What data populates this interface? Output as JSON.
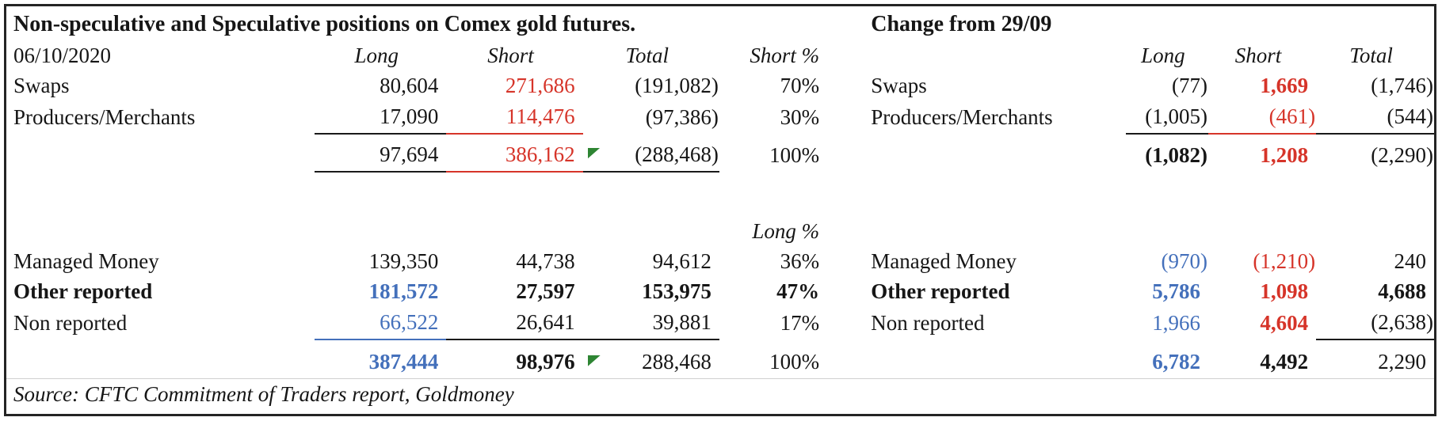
{
  "title_left": "Non-speculative and Speculative positions on Comex gold futures.",
  "title_right": "Change from 29/09",
  "source": "Source: CFTC Commitment of Traders report, Goldmoney",
  "colors": {
    "red": "#d63429",
    "blue": "#4470bb",
    "green": "#2e8533",
    "ink": "#161616",
    "border": "#242424"
  },
  "green_flag_meaning": "green-flag-icon",
  "grid": {
    "columns": [
      "label_left",
      "long_left",
      "short_left",
      "total_left",
      "short_pct",
      "gap",
      "label_right",
      "long_right",
      "short_right",
      "total_right"
    ],
    "flag_legend": "b=bold i=italic r=red l=blue u=underline v=red-underline w=blue-underline p=parenthesized g=green-flag h=centered-italic-header q=right-italic-header",
    "rows": [
      [
        {
          "t": "06/10/2020"
        },
        {
          "t": "Long",
          "f": "h"
        },
        {
          "t": "Short",
          "f": "h"
        },
        {
          "t": "Total",
          "f": "h"
        },
        {
          "t": "Short %",
          "f": "q"
        },
        {},
        {},
        {
          "t": "Long",
          "f": "h"
        },
        {
          "t": "Short",
          "f": "h"
        },
        {
          "t": "Total",
          "f": "h"
        }
      ],
      [
        {
          "t": "Swaps"
        },
        {
          "t": "80,604"
        },
        {
          "t": "271,686",
          "f": "r"
        },
        {
          "t": "(191,082)",
          "f": "p"
        },
        {
          "t": "70%"
        },
        {},
        {
          "t": "Swaps"
        },
        {
          "t": "(77)",
          "f": "p"
        },
        {
          "t": "1,669",
          "f": "rb"
        },
        {
          "t": "(1,746)",
          "f": "p"
        }
      ],
      [
        {
          "t": "Producers/Merchants"
        },
        {
          "t": "17,090",
          "f": "u"
        },
        {
          "t": "114,476",
          "f": "rv"
        },
        {
          "t": "(97,386)",
          "f": "p"
        },
        {
          "t": "30%"
        },
        {},
        {
          "t": "Producers/Merchants"
        },
        {
          "t": "(1,005)",
          "f": "pu"
        },
        {
          "t": "(461)",
          "f": "prv"
        },
        {
          "t": "(544)",
          "f": "pu"
        }
      ],
      [
        {},
        {
          "t": "97,694",
          "f": "u"
        },
        {
          "t": "386,162",
          "f": "rvg"
        },
        {
          "t": "(288,468)",
          "f": "pu"
        },
        {
          "t": "100%"
        },
        {},
        {},
        {
          "t": "(1,082)",
          "f": "pb"
        },
        {
          "t": "1,208",
          "f": "rb"
        },
        {
          "t": "(2,290)",
          "f": "p"
        }
      ],
      [
        {},
        {},
        {},
        {},
        {},
        {},
        {},
        {},
        {},
        {}
      ],
      [
        {},
        {},
        {},
        {},
        {
          "t": "Long %",
          "f": "q"
        },
        {},
        {},
        {},
        {},
        {}
      ],
      [
        {
          "t": "Managed Money"
        },
        {
          "t": "139,350"
        },
        {
          "t": "44,738"
        },
        {
          "t": "94,612"
        },
        {
          "t": "36%"
        },
        {},
        {
          "t": "Managed Money"
        },
        {
          "t": "(970)",
          "f": "pl"
        },
        {
          "t": "(1,210)",
          "f": "pr"
        },
        {
          "t": "240"
        }
      ],
      [
        {
          "t": "Other reported",
          "f": "b"
        },
        {
          "t": "181,572",
          "f": "lb"
        },
        {
          "t": "27,597",
          "f": "b"
        },
        {
          "t": "153,975",
          "f": "b"
        },
        {
          "t": "47%",
          "f": "b"
        },
        {},
        {
          "t": "Other reported",
          "f": "b"
        },
        {
          "t": "5,786",
          "f": "lb"
        },
        {
          "t": "1,098",
          "f": "rb"
        },
        {
          "t": "4,688",
          "f": "b"
        }
      ],
      [
        {
          "t": "Non reported"
        },
        {
          "t": "66,522",
          "f": "lw"
        },
        {
          "t": "26,641",
          "f": "u"
        },
        {
          "t": "39,881",
          "f": "u"
        },
        {
          "t": "17%"
        },
        {},
        {
          "t": "Non reported"
        },
        {
          "t": "1,966",
          "f": "l"
        },
        {
          "t": "4,604",
          "f": "rb"
        },
        {
          "t": "(2,638)",
          "f": "pu"
        }
      ],
      [
        {},
        {
          "t": "387,444",
          "f": "lb"
        },
        {
          "t": "98,976",
          "f": "bg"
        },
        {
          "t": "288,468"
        },
        {
          "t": "100%"
        },
        {},
        {},
        {
          "t": "6,782",
          "f": "lb"
        },
        {
          "t": "4,492",
          "f": "b"
        },
        {
          "t": "2,290"
        }
      ]
    ]
  }
}
